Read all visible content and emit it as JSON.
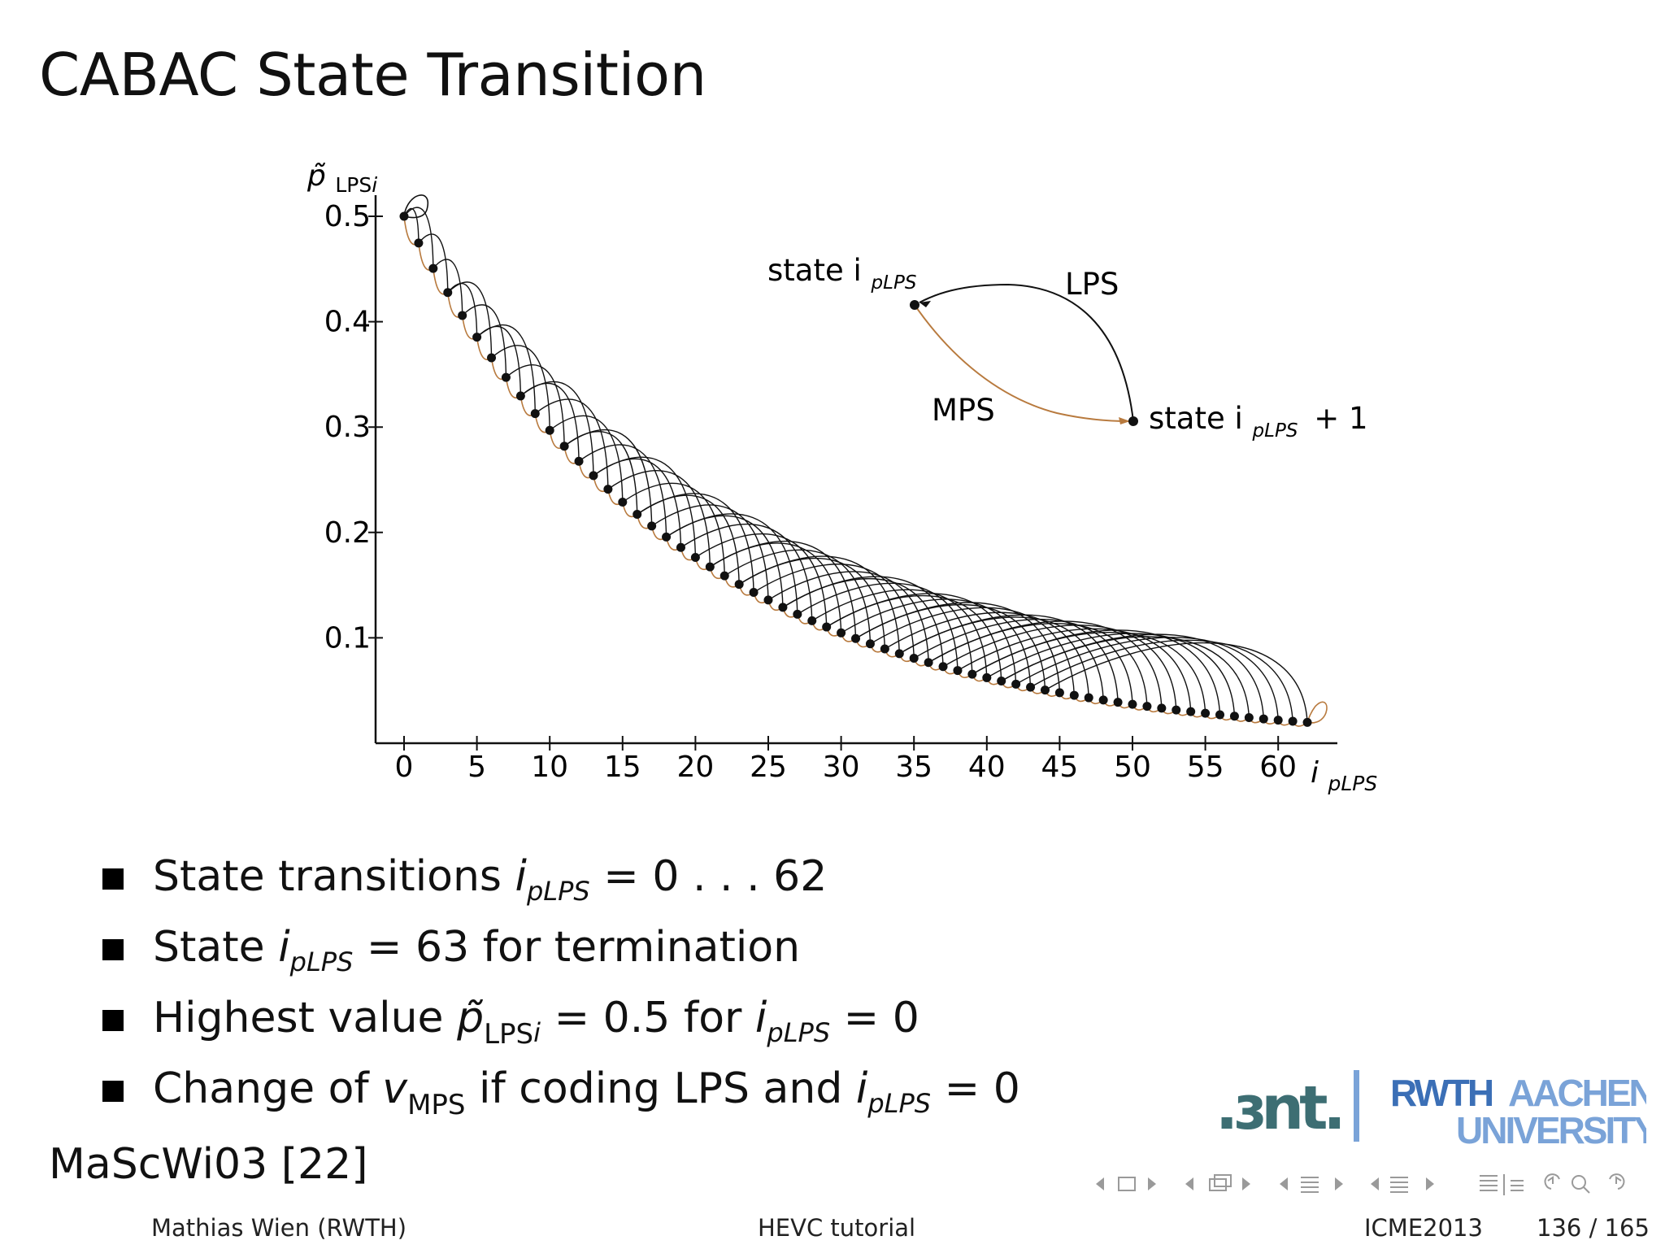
{
  "slide": {
    "title": "CABAC State Transition"
  },
  "chart_data": {
    "type": "scatter",
    "ylabel": "p̃LPSi",
    "xlabel": "ipLPS",
    "x_ticks": [
      "0",
      "5",
      "10",
      "15",
      "20",
      "25",
      "30",
      "35",
      "40",
      "45",
      "50",
      "55",
      "60"
    ],
    "y_ticks": [
      "0.1",
      "0.2",
      "0.3",
      "0.4",
      "0.5"
    ],
    "xlim": [
      -2,
      64
    ],
    "ylim": [
      0,
      0.52
    ],
    "series": [
      {
        "points": "state i -> p_LPS[i] = 0.5 * 0.949217^i, i = 0..62",
        "x_start": 0,
        "x_end": 62,
        "y_start": 0.5,
        "y_end": 0.01875,
        "decay": 0.949217
      }
    ],
    "legend_inset": {
      "state_label": "state i",
      "state_sub": "pLPS",
      "next_state_label": "state i",
      "next_state_sub": "pLPS",
      "next_state_suffix": "+ 1",
      "lps_label": "LPS",
      "mps_label": "MPS"
    },
    "colors": {
      "mps": "#b87a3e",
      "lps": "#111111"
    }
  },
  "bullets": {
    "b1": {
      "text": "State transitions",
      "var": "i",
      "sub": "pLPS",
      "tail": "= 0 . . . 62"
    },
    "b2": {
      "text": "State",
      "var": "i",
      "sub": "pLPS",
      "tail": "= 63 for termination"
    },
    "b3": {
      "text": "Highest value",
      "pvar": "p̃",
      "psub": "LPS",
      "psubit": "i",
      "mid": "= 0.5 for",
      "var": "i",
      "sub": "pLPS",
      "tail": "= 0"
    },
    "b4": {
      "text": "Change of",
      "vvar": "v",
      "vsub": "MPS",
      "mid": "if coding LPS and",
      "var": "i",
      "sub": "pLPS",
      "tail": "= 0"
    }
  },
  "reference": "MaScWi03 [22]",
  "footer": {
    "author": "Mathias Wien  (RWTH)",
    "talk": "HEVC tutorial",
    "venue": "ICME2013",
    "page": "136 / 165"
  },
  "logo": {
    "ient": ".ɜnt.",
    "rwth": "RWTH",
    "aachen": "AACHEN",
    "university": "UNIVERSITY",
    "color_dark": "#3d6e73",
    "color_blue": "#3b6fb6",
    "color_light": "#7aa3d8"
  }
}
